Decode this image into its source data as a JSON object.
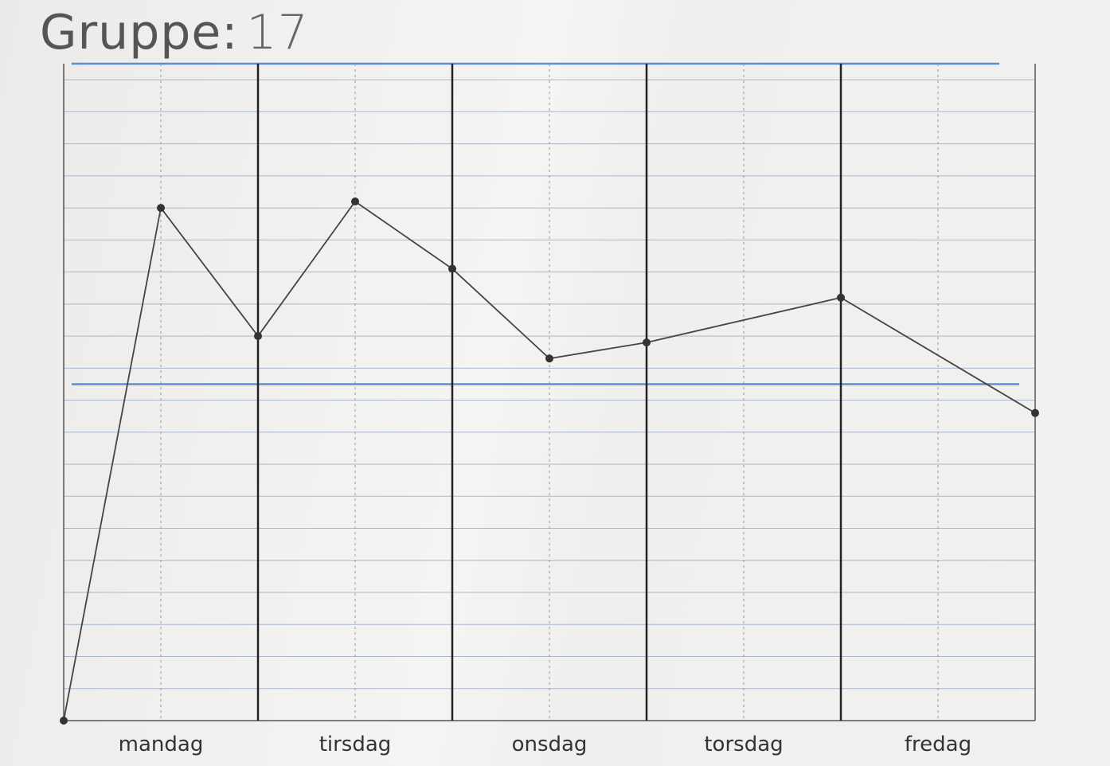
{
  "title": {
    "label": "Gruppe:",
    "group_number": "17"
  },
  "chart_data": {
    "type": "line",
    "title": "Gruppe: 17",
    "categories": [
      "mandag",
      "tirsdag",
      "onsdag",
      "torsdag",
      "fredag"
    ],
    "x": [
      0,
      0.5,
      1,
      1.5,
      2,
      2.5,
      3,
      4,
      5
    ],
    "values": [
      0,
      16,
      12,
      16.2,
      14.1,
      11.3,
      11.8,
      13.2,
      9.6
    ],
    "xlim": [
      0,
      5
    ],
    "ylim": [
      0,
      20.5
    ],
    "reference_lines": [
      10.5,
      20.5
    ],
    "grid": true,
    "colors": {
      "line": "#444444",
      "reference": "#5b8fd0",
      "grid": "#a9b7cc",
      "day_divider": "#222222"
    }
  }
}
